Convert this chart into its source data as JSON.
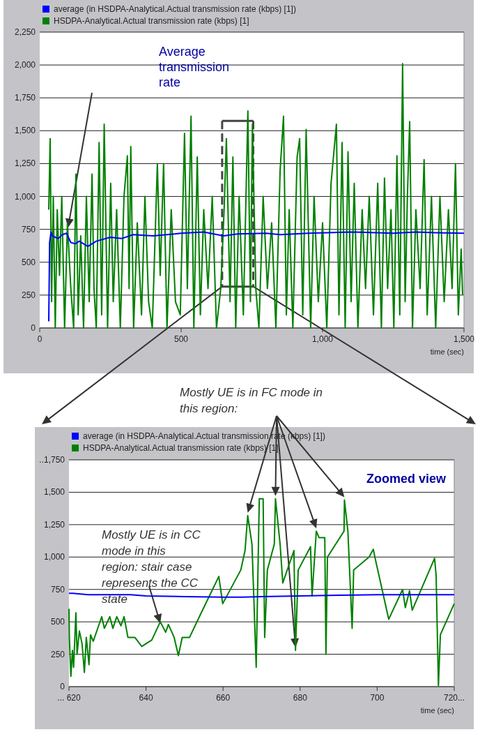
{
  "chart_data": [
    {
      "type": "line",
      "xlabel": "time (sec)",
      "xlim": [
        0,
        1500
      ],
      "xticks": [
        0,
        500,
        {
          "value": 1000,
          "label": "1,000"
        },
        {
          "value": 1500,
          "label": "1,500"
        }
      ],
      "ylim": [
        0,
        2250
      ],
      "yticks": [
        0,
        250,
        500,
        750,
        {
          "value": 1000,
          "label": "1,000"
        },
        {
          "value": 1250,
          "label": "1,250"
        },
        {
          "value": 1500,
          "label": "1,500"
        },
        {
          "value": 1750,
          "label": "1,750"
        },
        {
          "value": 2000,
          "label": "2,000"
        },
        {
          "value": 2250,
          "label": "2,250"
        }
      ],
      "grid": "y",
      "legend": "top left",
      "series": [
        {
          "name": "average (in HSDPA-Analytical.Actual transmission rate (kbps) [1])",
          "color": "#0000ff",
          "x": [
            32,
            35,
            40,
            45,
            55,
            65,
            80,
            95,
            110,
            125,
            140,
            170,
            200,
            250,
            290,
            330,
            400,
            450,
            500,
            580,
            650,
            700,
            800,
            850,
            950,
            1100,
            1250,
            1330,
            1400,
            1500
          ],
          "values": [
            50,
            650,
            730,
            700,
            690,
            680,
            710,
            720,
            650,
            640,
            660,
            620,
            660,
            690,
            680,
            710,
            700,
            710,
            720,
            730,
            700,
            715,
            720,
            710,
            720,
            730,
            720,
            730,
            725,
            720
          ]
        },
        {
          "name": "HSDPA-Analytical.Actual transmission rate (kbps) [1]",
          "color": "#008000",
          "x": [
            32,
            37,
            42,
            48,
            55,
            62,
            70,
            78,
            88,
            98,
            110,
            120,
            128,
            136,
            145,
            155,
            165,
            175,
            185,
            192,
            200,
            210,
            219,
            228,
            240,
            251,
            260,
            272,
            285,
            298,
            310,
            316,
            322,
            332,
            345,
            360,
            372,
            385,
            398,
            416,
            426,
            438,
            450,
            465,
            480,
            497,
            512,
            522,
            535,
            545,
            557,
            568,
            580,
            595,
            610,
            625,
            640,
            652,
            660,
            673,
            683,
            693,
            705,
            720,
            736,
            745,
            752,
            764,
            775,
            790,
            805,
            820,
            835,
            850,
            862,
            872,
            882,
            895,
            910,
            919,
            930,
            942,
            958,
            970,
            985,
            1000,
            1015,
            1030,
            1049,
            1058,
            1069,
            1080,
            1090,
            1101,
            1112,
            1125,
            1140,
            1152,
            1165,
            1180,
            1195,
            1208,
            1219,
            1230,
            1242,
            1252,
            1263,
            1273,
            1283,
            1292,
            1300,
            1308,
            1318,
            1330,
            1345,
            1359,
            1370,
            1385,
            1400,
            1415,
            1430,
            1445,
            1458,
            1470,
            1480,
            1490,
            1495
          ],
          "values": [
            900,
            1440,
            200,
            1000,
            0,
            900,
            400,
            1000,
            0,
            800,
            300,
            0,
            1170,
            100,
            700,
            0,
            1000,
            200,
            1170,
            300,
            0,
            1410,
            100,
            1550,
            0,
            1100,
            200,
            900,
            0,
            1000,
            1310,
            300,
            1380,
            0,
            800,
            100,
            1000,
            200,
            0,
            1250,
            400,
            1250,
            0,
            900,
            200,
            100,
            1480,
            300,
            1610,
            0,
            1300,
            100,
            900,
            300,
            1000,
            0,
            300,
            900,
            1440,
            200,
            1300,
            0,
            1000,
            100,
            1650,
            200,
            1550,
            300,
            0,
            1000,
            300,
            800,
            0,
            1200,
            1610,
            100,
            900,
            0,
            1300,
            1440,
            100,
            1510,
            0,
            1000,
            200,
            800,
            0,
            1100,
            1550,
            100,
            1410,
            0,
            1340,
            200,
            1100,
            0,
            900,
            300,
            1000,
            100,
            1100,
            0,
            1140,
            300,
            900,
            0,
            1310,
            100,
            2010,
            200,
            1000,
            1570,
            0,
            900,
            300,
            1280,
            100,
            1000,
            0,
            1000,
            200,
            900,
            300,
            1250,
            100,
            600,
            250
          ]
        }
      ],
      "annotations": [
        "Average transmission rate"
      ]
    },
    {
      "type": "line",
      "xlabel": "time (sec)",
      "xlim": [
        620,
        720
      ],
      "xticks": [
        {
          "value": 620,
          "label": "... 620"
        },
        640,
        660,
        680,
        700,
        {
          "value": 720,
          "label": "720..."
        }
      ],
      "ylim": [
        0,
        1750
      ],
      "yticks": [
        0,
        250,
        500,
        750,
        {
          "value": 1000,
          "label": "1,000"
        },
        {
          "value": 1250,
          "label": "1,250"
        },
        {
          "value": 1500,
          "label": "1,500"
        },
        {
          "value": 1750,
          "label": "..1,750"
        }
      ],
      "grid": "y",
      "legend": "top left",
      "series": [
        {
          "name": "average (in HSDPA-Analytical.Actual transmission rate (kbps) [1])",
          "color": "#0000ff",
          "x": [
            620,
            621,
            625,
            636,
            640,
            650,
            660,
            665,
            670,
            680,
            690,
            700,
            710,
            720
          ],
          "values": [
            720,
            720,
            710,
            710,
            700,
            695,
            690,
            690,
            695,
            700,
            705,
            710,
            710,
            710
          ]
        },
        {
          "name": "HSDPA-Analytical.Actual transmission rate (kbps) [1]",
          "color": "#008000",
          "x": [
            620,
            620.1,
            620.5,
            620.9,
            621.2,
            621.8,
            622.1,
            622.7,
            623.4,
            624,
            624.5,
            625.2,
            625.6,
            626.3,
            628.5,
            629.2,
            630.6,
            631.4,
            632.4,
            633.5,
            634.3,
            635.3,
            637.1,
            638.9,
            641.5,
            643.7,
            645.1,
            645.8,
            647.3,
            648.4,
            649.4,
            651.3,
            654.5,
            658.9,
            659.9,
            664.6,
            665.7,
            666.4,
            667.5,
            668.6,
            669.4,
            670.4,
            670.8,
            671.5,
            673.3,
            673.6,
            674.8,
            675.5,
            678.4,
            678.8,
            679.5,
            682.7,
            683.1,
            684.2,
            684.9,
            686.4,
            686.7,
            687.1,
            691.4,
            691.5,
            692.4,
            693.5,
            693.9,
            697.9,
            699,
            699.4,
            703,
            706.6,
            707.3,
            708.4,
            709.1,
            714.9,
            715.3,
            715.9,
            716.4,
            720
          ],
          "values": [
            600,
            380,
            80,
            280,
            150,
            570,
            250,
            430,
            330,
            110,
            380,
            170,
            400,
            350,
            540,
            450,
            540,
            450,
            540,
            470,
            540,
            380,
            380,
            310,
            360,
            500,
            420,
            480,
            380,
            240,
            380,
            380,
            580,
            850,
            640,
            900,
            1050,
            1320,
            1100,
            150,
            1450,
            1450,
            380,
            900,
            1100,
            1450,
            1100,
            800,
            1050,
            280,
            900,
            1080,
            700,
            1200,
            1150,
            1150,
            250,
            1000,
            1200,
            1440,
            1200,
            450,
            900,
            1000,
            1060,
            1000,
            520,
            750,
            610,
            740,
            590,
            990,
            860,
            10,
            400,
            640
          ]
        }
      ],
      "annotations": [
        "Zoomed view",
        {
          "text": "Mostly UE is in CC mode in this region: stair case represents the CC state",
          "x": 643.7,
          "y": 500
        },
        "Mostly UE is in FC mode in this region:"
      ]
    }
  ]
}
